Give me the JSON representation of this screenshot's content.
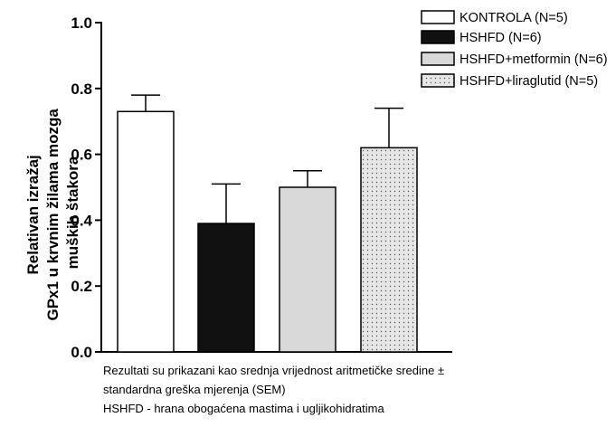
{
  "chart_data": {
    "type": "bar",
    "categories": [
      "KONTROLA (N=5)",
      "HSHFD (N=6)",
      "HSHFD+metformin (N=6)",
      "HSHFD+liraglutid (N=5)"
    ],
    "values": [
      0.73,
      0.39,
      0.5,
      0.62
    ],
    "errors": [
      0.05,
      0.12,
      0.05,
      0.12
    ],
    "ylabel_lines": [
      "Relativan izražaj",
      "GPx1 u krvnim žilama mozga",
      "muških štakora"
    ],
    "ylim": [
      0.0,
      1.0
    ],
    "yticks": [
      "0.0",
      "0.2",
      "0.4",
      "0.6",
      "0.8",
      "1.0"
    ],
    "legend_position": "top-right",
    "fills": [
      "#ffffff",
      "#111111",
      "#d9d9d9",
      "dotted"
    ]
  },
  "notes": [
    "Rezultati su prikazani kao srednja vrijednost aritmetičke sredine ±",
    "standardna greška mjerenja (SEM)",
    "HSHFD - hrana obogaćena mastima i ugljikohidratima"
  ]
}
